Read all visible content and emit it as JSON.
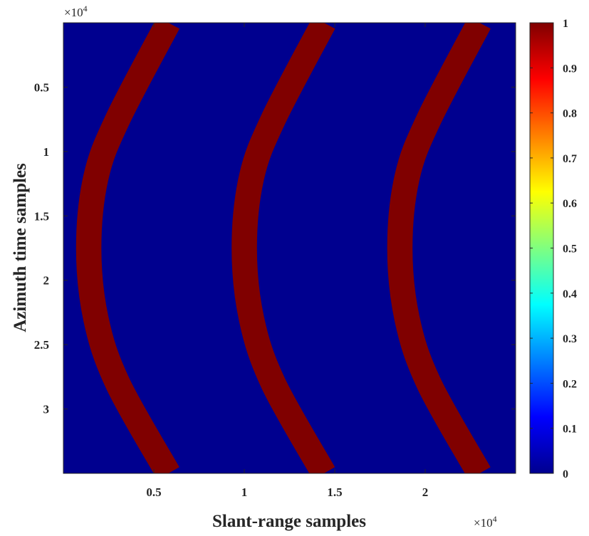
{
  "chart_data": {
    "type": "heatmap",
    "title": "",
    "xlabel": "Slant-range samples",
    "ylabel": "Azimuth time samples",
    "x_exponent_label": "×10",
    "y_exponent_label": "×10",
    "exponent_power": "4",
    "xlim": [
      0,
      25000
    ],
    "ylim": [
      0,
      35000
    ],
    "y_reversed": true,
    "x_ticks": [
      {
        "value": 5000,
        "label": "0.5"
      },
      {
        "value": 10000,
        "label": "1"
      },
      {
        "value": 15000,
        "label": "1.5"
      },
      {
        "value": 20000,
        "label": "2"
      }
    ],
    "y_ticks": [
      {
        "value": 5000,
        "label": "0.5"
      },
      {
        "value": 10000,
        "label": "1"
      },
      {
        "value": 15000,
        "label": "1.5"
      },
      {
        "value": 20000,
        "label": "2"
      },
      {
        "value": 25000,
        "label": "2.5"
      },
      {
        "value": 30000,
        "label": "3"
      }
    ],
    "background_value": 0,
    "curves": [
      {
        "value": 1,
        "points": [
          [
            5800,
            0
          ],
          [
            3000,
            7500
          ],
          [
            1800,
            12000
          ],
          [
            1400,
            17500
          ],
          [
            1800,
            23000
          ],
          [
            3000,
            28000
          ],
          [
            5800,
            35000
          ]
        ],
        "width": 1400
      },
      {
        "value": 1,
        "points": [
          [
            14400,
            0
          ],
          [
            11600,
            7500
          ],
          [
            10400,
            12000
          ],
          [
            10000,
            17500
          ],
          [
            10400,
            23000
          ],
          [
            11600,
            28000
          ],
          [
            14400,
            35000
          ]
        ],
        "width": 1400
      },
      {
        "value": 1,
        "points": [
          [
            23000,
            0
          ],
          [
            20200,
            7500
          ],
          [
            19000,
            12000
          ],
          [
            18600,
            17500
          ],
          [
            19000,
            23000
          ],
          [
            20200,
            28000
          ],
          [
            23000,
            35000
          ]
        ],
        "width": 1400
      }
    ],
    "colorbar": {
      "colormap": "jet",
      "range": [
        0,
        1
      ],
      "ticks": [
        {
          "value": 0,
          "label": "0"
        },
        {
          "value": 0.1,
          "label": "0.1"
        },
        {
          "value": 0.2,
          "label": "0.2"
        },
        {
          "value": 0.3,
          "label": "0.3"
        },
        {
          "value": 0.4,
          "label": "0.4"
        },
        {
          "value": 0.5,
          "label": "0.5"
        },
        {
          "value": 0.6,
          "label": "0.6"
        },
        {
          "value": 0.7,
          "label": "0.7"
        },
        {
          "value": 0.8,
          "label": "0.8"
        },
        {
          "value": 0.9,
          "label": "0.9"
        },
        {
          "value": 1,
          "label": "1"
        }
      ]
    },
    "colors": {
      "low": "#00008f",
      "high": "#800000"
    }
  }
}
